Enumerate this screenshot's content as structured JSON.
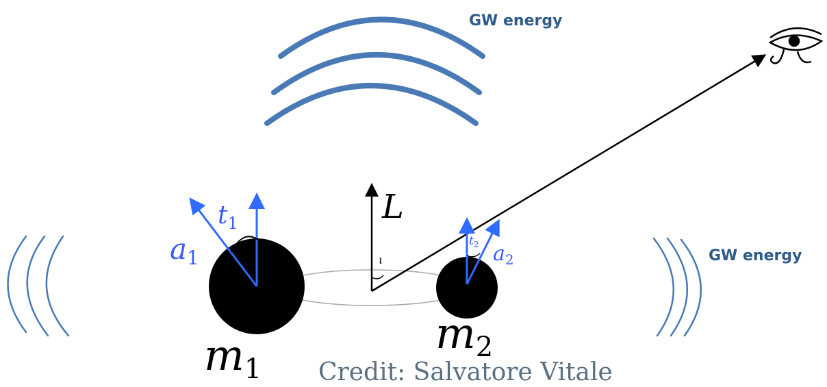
{
  "gw_energy_labels": [
    "GW energy",
    "GW energy"
  ],
  "angular_momentum": "L",
  "inclination": "ι",
  "bodies": [
    {
      "mass": {
        "base": "m",
        "sub": "1"
      },
      "spin": {
        "base": "a",
        "sub": "1"
      },
      "tilt": {
        "base": "t",
        "sub": "1"
      }
    },
    {
      "mass": {
        "base": "m",
        "sub": "2"
      },
      "spin": {
        "base": "a",
        "sub": "2"
      },
      "tilt": {
        "base": "t",
        "sub": "2"
      }
    }
  ],
  "credit": "Credit: Salvatore Vitale"
}
